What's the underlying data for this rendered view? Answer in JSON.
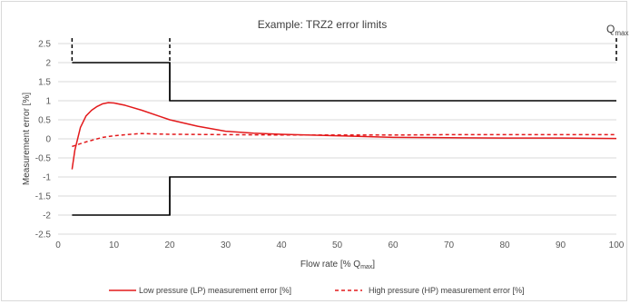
{
  "chart_data": {
    "type": "line",
    "title": "Example: TRZ2 error limits",
    "corner_label": {
      "base": "Q",
      "sub": "max"
    },
    "xlabel": {
      "base": "Flow rate [% Q",
      "sub": "max",
      "tail": "]"
    },
    "ylabel": "Measurement error [%]",
    "xlim": [
      0,
      100
    ],
    "ylim": [
      -2.5,
      2.5
    ],
    "xticks": [
      0,
      10,
      20,
      30,
      40,
      50,
      60,
      70,
      80,
      90,
      100
    ],
    "yticks": [
      2.5,
      2,
      1.5,
      1,
      0.5,
      0,
      -0.5,
      -1,
      -1.5,
      -2,
      -2.5
    ],
    "xtick_labels": [
      "0",
      "10",
      "20",
      "30",
      "40",
      "50",
      "60",
      "70",
      "80",
      "90",
      "100"
    ],
    "ytick_labels": [
      "2.5",
      "2",
      "1.5",
      "1",
      "0.5",
      "0",
      "-0.5",
      "-1",
      "-1.5",
      "-2",
      "-2.5"
    ],
    "grid": "horizontal",
    "legend_position": "bottom",
    "limits": {
      "upper": [
        [
          2.5,
          2
        ],
        [
          20,
          2
        ],
        [
          20,
          1
        ],
        [
          100,
          1
        ]
      ],
      "lower": [
        [
          2.5,
          -2
        ],
        [
          20,
          -2
        ],
        [
          20,
          -1
        ],
        [
          100,
          -1
        ]
      ],
      "vertical_markers": [
        2.5,
        20,
        100
      ],
      "color": "#000000"
    },
    "series": [
      {
        "name": "Low pressure (LP) measurement error [%]",
        "style": "solid",
        "color": "#e31a1c",
        "x": [
          2.5,
          3,
          4,
          5,
          6,
          7,
          8,
          9,
          10,
          12,
          15,
          18,
          20,
          25,
          30,
          35,
          40,
          50,
          60,
          70,
          80,
          90,
          100
        ],
        "y": [
          -0.8,
          -0.3,
          0.3,
          0.6,
          0.75,
          0.85,
          0.92,
          0.95,
          0.94,
          0.88,
          0.75,
          0.6,
          0.5,
          0.33,
          0.2,
          0.15,
          0.12,
          0.08,
          0.04,
          0.03,
          0.02,
          0.02,
          0.01
        ]
      },
      {
        "name": "High pressure (HP) measurement error [%]",
        "style": "dashed",
        "color": "#e31a1c",
        "x": [
          2.5,
          5,
          8,
          10,
          13,
          15,
          17,
          20,
          30,
          40,
          50,
          60,
          70,
          80,
          90,
          100
        ],
        "y": [
          -0.2,
          -0.08,
          0.04,
          0.08,
          0.12,
          0.14,
          0.13,
          0.12,
          0.11,
          0.1,
          0.1,
          0.1,
          0.11,
          0.11,
          0.11,
          0.11
        ]
      }
    ]
  }
}
